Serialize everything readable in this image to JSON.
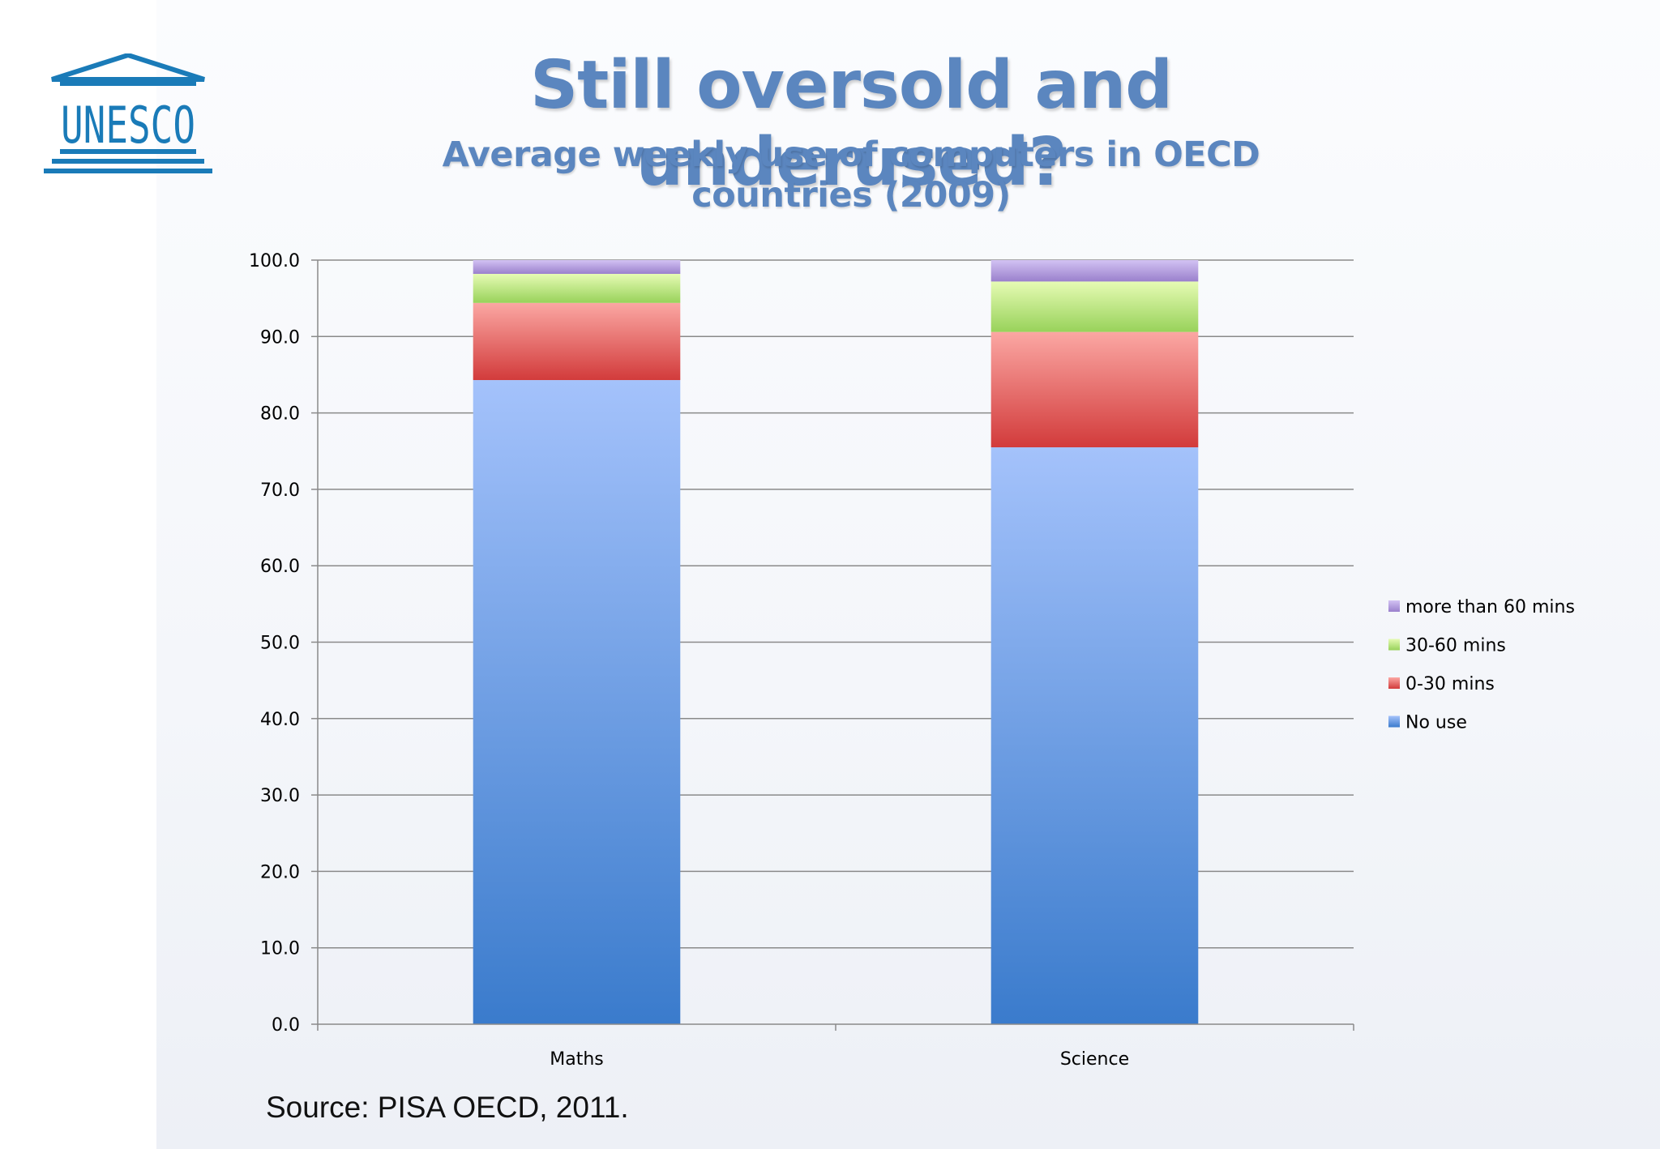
{
  "slide": {
    "title": "Still oversold and underused?",
    "subtitle": "Average weekly use of computers in OECD countries (2009)",
    "source": "Source: PISA OECD, 2011.",
    "logo_text": "UNESCO",
    "logo_color": "#1a7bb8"
  },
  "chart_data": {
    "type": "bar",
    "stacked": true,
    "categories": [
      "Maths",
      "Science"
    ],
    "series": [
      {
        "name": "No use",
        "values": [
          84.3,
          75.5
        ],
        "color": "#4a85d6"
      },
      {
        "name": "0-30 mins",
        "values": [
          10.1,
          15.1
        ],
        "color": "#e05252"
      },
      {
        "name": "30-60 mins",
        "values": [
          3.8,
          6.6
        ],
        "color": "#b3e06a"
      },
      {
        "name": "more than 60 mins",
        "values": [
          1.8,
          2.8
        ],
        "color": "#a98fd6"
      }
    ],
    "ylim": [
      0,
      100
    ],
    "yticks": [
      "0.0",
      "10.0",
      "20.0",
      "30.0",
      "40.0",
      "50.0",
      "60.0",
      "70.0",
      "80.0",
      "90.0",
      "100.0"
    ],
    "grid": true,
    "legend_position": "right",
    "legend_order": [
      "more than 60 mins",
      "30-60 mins",
      "0-30 mins",
      "No use"
    ],
    "xlabel": "",
    "ylabel": ""
  }
}
